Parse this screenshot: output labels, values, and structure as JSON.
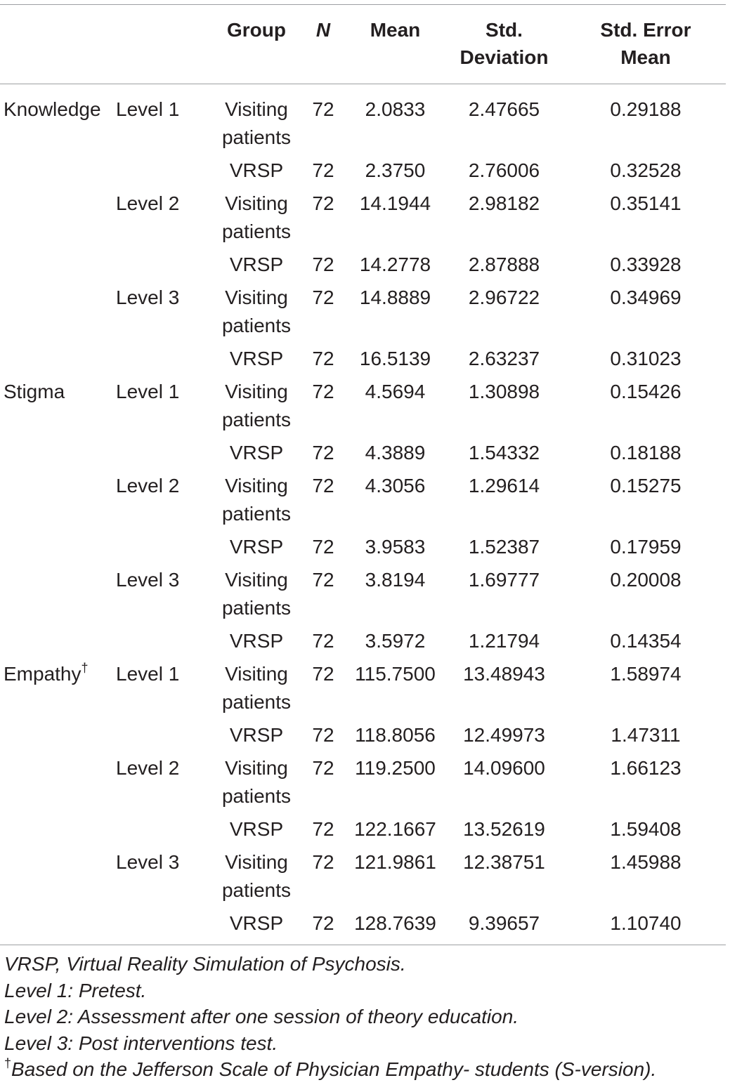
{
  "header": {
    "col_measure": "",
    "col_level": "",
    "col_group": "Group",
    "col_n": "N",
    "col_mean": "Mean",
    "col_sd_line1": "Std.",
    "col_sd_line2": "Deviation",
    "col_sem_line1": "Std. Error",
    "col_sem_line2": "Mean"
  },
  "rows": [
    {
      "measure": "Knowledge",
      "level": "Level 1",
      "group_line1": "Visiting",
      "group_line2": "patients",
      "n": "72",
      "mean": "2.0833",
      "sd": "2.47665",
      "sem": "0.29188"
    },
    {
      "measure": "",
      "level": "",
      "group_line1": "VRSP",
      "group_line2": "",
      "n": "72",
      "mean": "2.3750",
      "sd": "2.76006",
      "sem": "0.32528"
    },
    {
      "measure": "",
      "level": "Level 2",
      "group_line1": "Visiting",
      "group_line2": "patients",
      "n": "72",
      "mean": "14.1944",
      "sd": "2.98182",
      "sem": "0.35141"
    },
    {
      "measure": "",
      "level": "",
      "group_line1": "VRSP",
      "group_line2": "",
      "n": "72",
      "mean": "14.2778",
      "sd": "2.87888",
      "sem": "0.33928"
    },
    {
      "measure": "",
      "level": "Level 3",
      "group_line1": "Visiting",
      "group_line2": "patients",
      "n": "72",
      "mean": "14.8889",
      "sd": "2.96722",
      "sem": "0.34969"
    },
    {
      "measure": "",
      "level": "",
      "group_line1": "VRSP",
      "group_line2": "",
      "n": "72",
      "mean": "16.5139",
      "sd": "2.63237",
      "sem": "0.31023"
    },
    {
      "measure": "Stigma",
      "level": "Level 1",
      "group_line1": "Visiting",
      "group_line2": "patients",
      "n": "72",
      "mean": "4.5694",
      "sd": "1.30898",
      "sem": "0.15426"
    },
    {
      "measure": "",
      "level": "",
      "group_line1": "VRSP",
      "group_line2": "",
      "n": "72",
      "mean": "4.3889",
      "sd": "1.54332",
      "sem": "0.18188"
    },
    {
      "measure": "",
      "level": "Level 2",
      "group_line1": "Visiting",
      "group_line2": "patients",
      "n": "72",
      "mean": "4.3056",
      "sd": "1.29614",
      "sem": "0.15275"
    },
    {
      "measure": "",
      "level": "",
      "group_line1": "VRSP",
      "group_line2": "",
      "n": "72",
      "mean": "3.9583",
      "sd": "1.52387",
      "sem": "0.17959"
    },
    {
      "measure": "",
      "level": "Level 3",
      "group_line1": "Visiting",
      "group_line2": "patients",
      "n": "72",
      "mean": "3.8194",
      "sd": "1.69777",
      "sem": "0.20008"
    },
    {
      "measure": "",
      "level": "",
      "group_line1": "VRSP",
      "group_line2": "",
      "n": "72",
      "mean": "3.5972",
      "sd": "1.21794",
      "sem": "0.14354"
    },
    {
      "measure": "Empathy",
      "measure_sup": "†",
      "level": "Level 1",
      "group_line1": "Visiting",
      "group_line2": "patients",
      "n": "72",
      "mean": "115.7500",
      "sd": "13.48943",
      "sem": "1.58974"
    },
    {
      "measure": "",
      "level": "",
      "group_line1": "VRSP",
      "group_line2": "",
      "n": "72",
      "mean": "118.8056",
      "sd": "12.49973",
      "sem": "1.47311"
    },
    {
      "measure": "",
      "level": "Level 2",
      "group_line1": "Visiting",
      "group_line2": "patients",
      "n": "72",
      "mean": "119.2500",
      "sd": "14.09600",
      "sem": "1.66123"
    },
    {
      "measure": "",
      "level": "",
      "group_line1": "VRSP",
      "group_line2": "",
      "n": "72",
      "mean": "122.1667",
      "sd": "13.52619",
      "sem": "1.59408"
    },
    {
      "measure": "",
      "level": "Level 3",
      "group_line1": "Visiting",
      "group_line2": "patients",
      "n": "72",
      "mean": "121.9861",
      "sd": "12.38751",
      "sem": "1.45988"
    },
    {
      "measure": "",
      "level": "",
      "group_line1": "VRSP",
      "group_line2": "",
      "n": "72",
      "mean": "128.7639",
      "sd": "9.39657",
      "sem": "1.10740"
    }
  ],
  "footnotes": {
    "abbrev": "VRSP, Virtual Reality Simulation of Psychosis.",
    "level1": "Level 1: Pretest.",
    "level2": "Level 2: Assessment after one session of theory education.",
    "level3": "Level 3: Post interventions test.",
    "dagger_symbol": "†",
    "dagger_text": "Based on the Jefferson Scale of Physician Empathy- students (S-version)."
  }
}
